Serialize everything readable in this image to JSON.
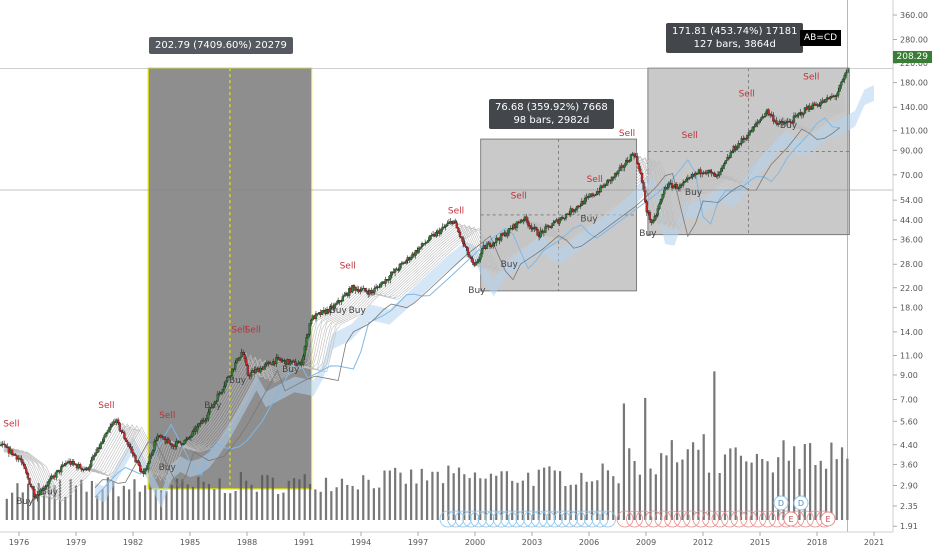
{
  "chart_data": {
    "type": "candlestick",
    "scale": "log",
    "grid": false,
    "x_ticks": [
      "1976",
      "1979",
      "1982",
      "1985",
      "1988",
      "1991",
      "1994",
      "1997",
      "2000",
      "2003",
      "2006",
      "2009",
      "2012",
      "2015",
      "2018",
      "2021"
    ],
    "y_ticks": [
      "360.00",
      "280.00",
      "220.00",
      "180.00",
      "140.00",
      "110.00",
      "90.00",
      "70.00",
      "54.00",
      "44.00",
      "36.00",
      "28.00",
      "22.00",
      "18.00",
      "14.00",
      "11.00",
      "9.00",
      "7.00",
      "5.60",
      "4.40",
      "3.60",
      "2.90",
      "2.35",
      "1.91"
    ],
    "y_tick_values": [
      360,
      280,
      220,
      180,
      140,
      110,
      90,
      70,
      54,
      44,
      36,
      28,
      22,
      18,
      14,
      11,
      9,
      7,
      5.6,
      4.4,
      3.6,
      2.9,
      2.35,
      1.91
    ],
    "y_range": [
      1.8,
      420
    ],
    "x_range": [
      1975,
      2022
    ],
    "last_price": "208.29",
    "price_path": [
      [
        1975.0,
        4.4
      ],
      [
        1976.0,
        3.8
      ],
      [
        1976.8,
        2.6
      ],
      [
        1977.5,
        3.0
      ],
      [
        1978.5,
        3.7
      ],
      [
        1979.5,
        3.4
      ],
      [
        1980.5,
        4.8
      ],
      [
        1981.0,
        5.7
      ],
      [
        1981.7,
        4.4
      ],
      [
        1982.5,
        3.2
      ],
      [
        1983.2,
        4.8
      ],
      [
        1984.0,
        4.4
      ],
      [
        1984.8,
        4.6
      ],
      [
        1985.8,
        5.9
      ],
      [
        1986.5,
        7.5
      ],
      [
        1987.7,
        11.5
      ],
      [
        1988.0,
        9.0
      ],
      [
        1989.5,
        10.5
      ],
      [
        1990.8,
        10.0
      ],
      [
        1991.3,
        16.0
      ],
      [
        1992.5,
        18.0
      ],
      [
        1993.5,
        22.0
      ],
      [
        1994.5,
        21.0
      ],
      [
        1995.5,
        25.0
      ],
      [
        1996.5,
        30.0
      ],
      [
        1997.5,
        36.0
      ],
      [
        1998.2,
        40.0
      ],
      [
        1998.8,
        44.0
      ],
      [
        1999.3,
        35.0
      ],
      [
        1999.9,
        27.0
      ],
      [
        2000.4,
        33.0
      ],
      [
        2001.5,
        38.0
      ],
      [
        2002.5,
        45.0
      ],
      [
        2003.3,
        38.0
      ],
      [
        2004.5,
        45.0
      ],
      [
        2005.5,
        52.0
      ],
      [
        2006.5,
        60.0
      ],
      [
        2007.5,
        72.0
      ],
      [
        2008.3,
        88.0
      ],
      [
        2008.6,
        75.0
      ],
      [
        2009.0,
        48.0
      ],
      [
        2009.3,
        42.0
      ],
      [
        2010.0,
        63.0
      ],
      [
        2010.8,
        62.0
      ],
      [
        2011.5,
        70.0
      ],
      [
        2012.0,
        74.0
      ],
      [
        2012.7,
        68.0
      ],
      [
        2013.5,
        90.0
      ],
      [
        2014.5,
        110.0
      ],
      [
        2015.3,
        135.0
      ],
      [
        2015.9,
        118.0
      ],
      [
        2016.5,
        120.0
      ],
      [
        2017.5,
        140.0
      ],
      [
        2018.3,
        148.0
      ],
      [
        2019.0,
        160.0
      ],
      [
        2019.6,
        208.3
      ]
    ],
    "annotations": {
      "measure_boxes": [
        {
          "label_line1": "202.79 (7409.60%) 20279",
          "label_line2": "",
          "x_start": 1982.8,
          "x_end": 1991.4,
          "y_low": 2.8,
          "y_high": 209.0
        },
        {
          "label_line1": "76.68 (359.92%) 7668",
          "label_line2": "98 bars, 2982d",
          "x_start": 2000.3,
          "x_end": 2008.5,
          "y_low": 21.3,
          "y_high": 101.0
        },
        {
          "label_line1": "171.81 (453.74%) 17181",
          "label_line2": "127 bars, 3864d",
          "x_start": 2009.1,
          "x_end": 2019.7,
          "y_low": 37.9,
          "y_high": 209.0
        }
      ],
      "pattern_label": "AB=CD",
      "sell_signals": [
        {
          "x": 1975.6,
          "y": 5.3
        },
        {
          "x": 1980.6,
          "y": 6.4
        },
        {
          "x": 1983.8,
          "y": 5.8
        },
        {
          "x": 1987.6,
          "y": 13.9
        },
        {
          "x": 1988.3,
          "y": 13.9
        },
        {
          "x": 1993.3,
          "y": 26.8
        },
        {
          "x": 1999.0,
          "y": 47.0
        },
        {
          "x": 2002.3,
          "y": 55.0
        },
        {
          "x": 2006.3,
          "y": 65.0
        },
        {
          "x": 2008.0,
          "y": 104.0
        },
        {
          "x": 2011.3,
          "y": 102.0
        },
        {
          "x": 2014.3,
          "y": 156.0
        },
        {
          "x": 2017.7,
          "y": 186.0
        }
      ],
      "buy_signals": [
        {
          "x": 1976.3,
          "y": 2.4
        },
        {
          "x": 1977.6,
          "y": 2.65
        },
        {
          "x": 1983.8,
          "y": 3.4
        },
        {
          "x": 1986.2,
          "y": 6.4
        },
        {
          "x": 1987.5,
          "y": 8.3
        },
        {
          "x": 1990.3,
          "y": 9.3
        },
        {
          "x": 1992.8,
          "y": 17.0
        },
        {
          "x": 1993.8,
          "y": 17.0
        },
        {
          "x": 2000.1,
          "y": 20.8
        },
        {
          "x": 2001.8,
          "y": 27.2
        },
        {
          "x": 2006.0,
          "y": 43.3
        },
        {
          "x": 2009.1,
          "y": 37.4
        },
        {
          "x": 2011.5,
          "y": 57.0
        },
        {
          "x": 2016.5,
          "y": 113.0
        }
      ],
      "event_markers_dividend": {
        "label": "D",
        "count": 2
      },
      "event_markers_earnings": {
        "label": "E",
        "count": 2
      }
    },
    "buy_label": "Buy",
    "sell_label": "Sell",
    "colors": {
      "up": "#2e7d32",
      "down": "#c62828",
      "sell_text": "#c0303a",
      "buy_text": "#444444",
      "measure_box_dark": "#6e6e6e",
      "measure_box_light": "#9c9c9c",
      "ribbon": "#bdbdbd",
      "cloud": "#b3d4f0",
      "sma_blue": "#7fb8e6",
      "sma_grey": "#777777",
      "volume": "#555555",
      "dividend_circle": "#8ec3e8",
      "earnings_circle": "#e88e8e",
      "highlight_yellow": "#e5e600"
    }
  }
}
